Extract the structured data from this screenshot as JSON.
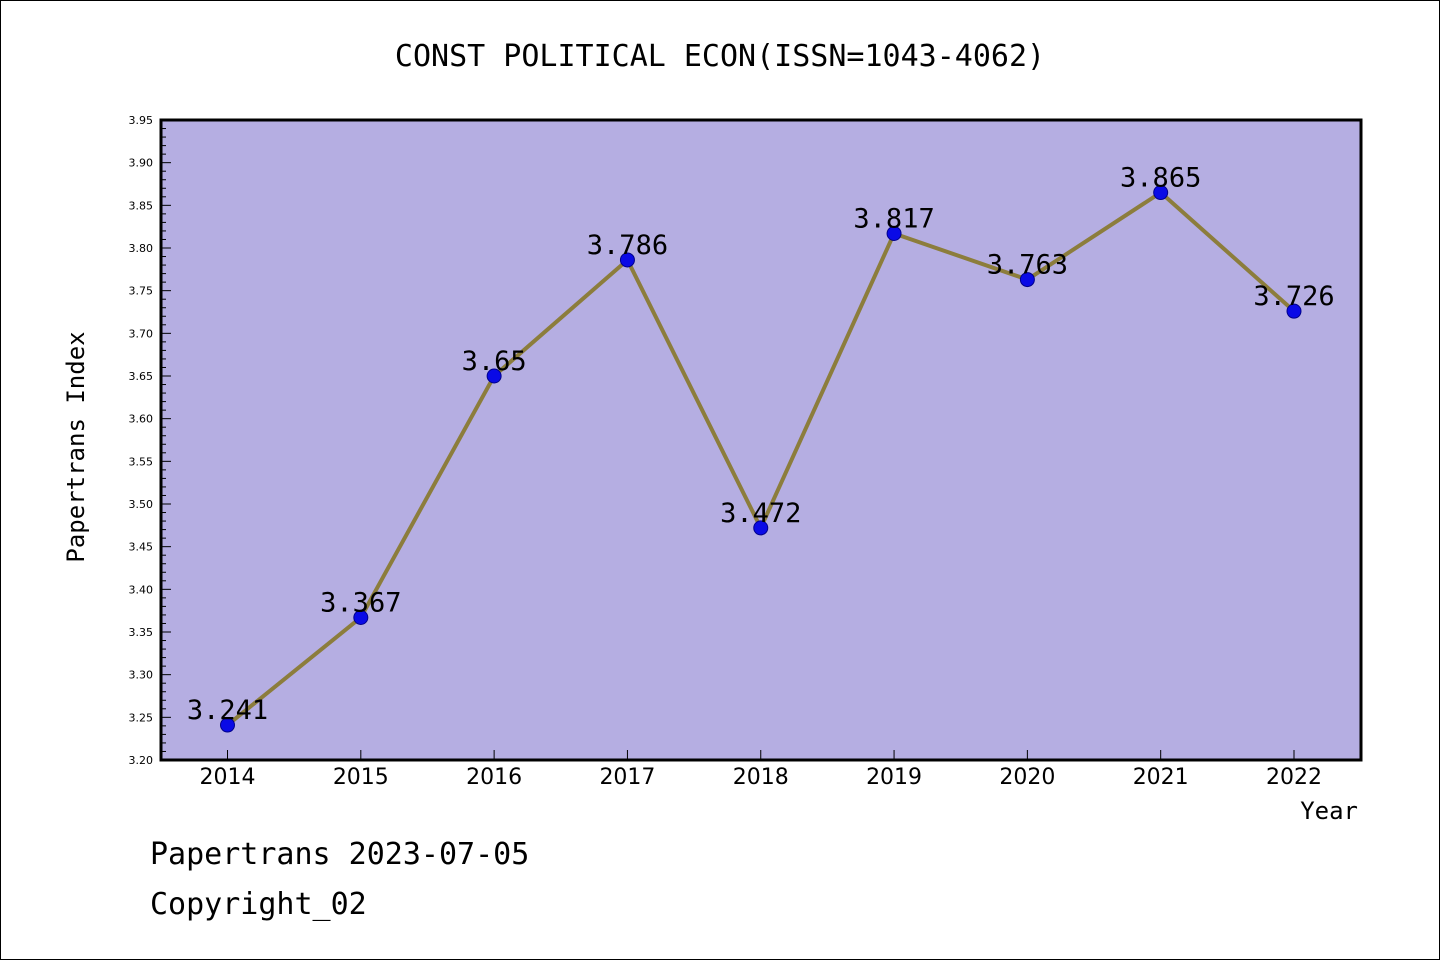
{
  "chart_data": {
    "type": "line",
    "title": "CONST POLITICAL ECON(ISSN=1043-4062)",
    "xlabel": "Year",
    "ylabel": "Papertrans Index",
    "categories": [
      "2014",
      "2015",
      "2016",
      "2017",
      "2018",
      "2019",
      "2020",
      "2021",
      "2022"
    ],
    "values": [
      3.241,
      3.367,
      3.65,
      3.786,
      3.472,
      3.817,
      3.763,
      3.865,
      3.726
    ],
    "data_labels": [
      "3.241",
      "3.367",
      "3.65",
      "3.786",
      "3.472",
      "3.817",
      "3.763",
      "3.865",
      "3.726"
    ],
    "ylim": [
      3.2,
      3.95
    ],
    "yticks": [
      "3.20",
      "3.25",
      "3.30",
      "3.35",
      "3.40",
      "3.45",
      "3.50",
      "3.55",
      "3.60",
      "3.65",
      "3.70",
      "3.75",
      "3.80",
      "3.85",
      "3.90",
      "3.95"
    ],
    "grid": false,
    "colors": {
      "plot_background": "#b5aee2",
      "line": "#8c7d3c",
      "marker": "#0a0ae6",
      "marker_edge": "#00008b"
    }
  },
  "footer": {
    "date_line": "Papertrans 2023-07-05",
    "copyright_line": "Copyright_02"
  }
}
